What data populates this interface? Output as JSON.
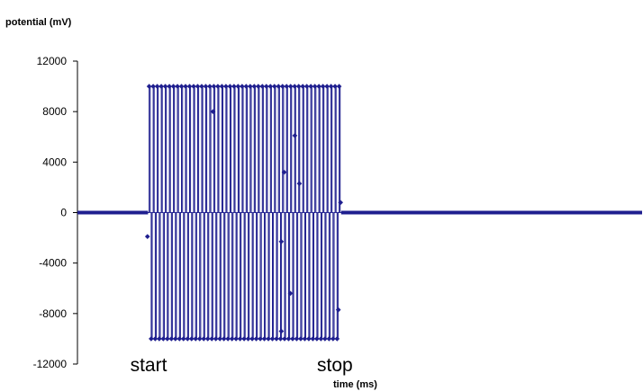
{
  "chart_data": {
    "type": "line",
    "ylabel": "potential (mV)",
    "xlabel": "time (ms)",
    "ylim": [
      -12000,
      12000
    ],
    "yticks": [
      12000,
      8000,
      4000,
      0,
      -4000,
      -8000,
      -12000
    ],
    "x_range": [
      0,
      100
    ],
    "grid": false,
    "legend": "none",
    "series_color": "#1f1f8f",
    "annotations": [
      {
        "text": "start",
        "x": 12.6
      },
      {
        "text": "stop",
        "x": 45.6
      }
    ],
    "baseline_before": {
      "x": [
        0,
        12.5
      ],
      "y": 0
    },
    "burst": {
      "x_start": 12.7,
      "x_end": 46.7,
      "spikes": 95,
      "high": 10000,
      "low": -10000
    },
    "baseline_after": {
      "x": [
        46.7,
        100
      ],
      "y": 0
    },
    "stray_points": [
      {
        "x": 12.4,
        "y": -1900
      },
      {
        "x": 24.0,
        "y": 8000
      },
      {
        "x": 36.6,
        "y": 3200
      },
      {
        "x": 38.5,
        "y": 6100
      },
      {
        "x": 39.3,
        "y": 2300
      },
      {
        "x": 37.7,
        "y": -6400
      },
      {
        "x": 36.1,
        "y": -9400
      },
      {
        "x": 36.1,
        "y": -2300
      },
      {
        "x": 46.2,
        "y": -7700
      },
      {
        "x": 46.6,
        "y": 800
      }
    ]
  }
}
